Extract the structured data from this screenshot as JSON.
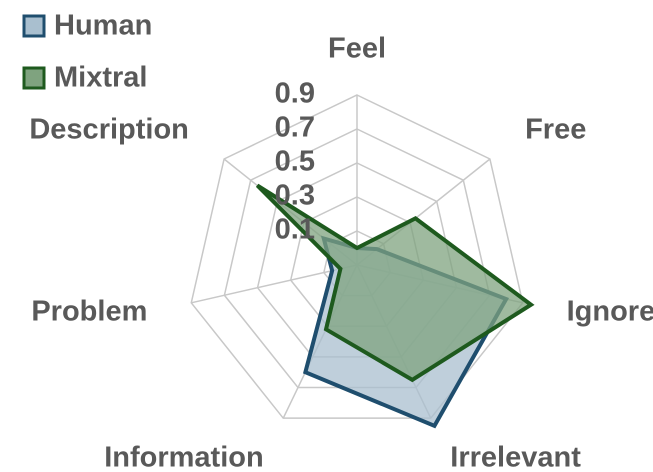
{
  "chart_data": {
    "type": "radar",
    "categories": [
      "Feel",
      "Free",
      "Ignore",
      "Irrelevant",
      "Information",
      "Problem",
      "Description"
    ],
    "series": [
      {
        "name": "Human",
        "color": "#1f4e6e",
        "fill": "#a9bfcf",
        "values": [
          0.0,
          0.05,
          0.8,
          0.95,
          0.6,
          0.05,
          0.15
        ]
      },
      {
        "name": "Mixtral",
        "color": "#1e5a1e",
        "fill": "#7fa37f",
        "values": [
          0.0,
          0.34,
          0.95,
          0.65,
          0.32,
          0.0,
          0.65
        ]
      }
    ],
    "ylim": [
      -0.1,
      0.9
    ],
    "yticks": [
      0.1,
      0.3,
      0.5,
      0.7,
      0.9
    ],
    "grid": true,
    "legend": "top-left"
  }
}
